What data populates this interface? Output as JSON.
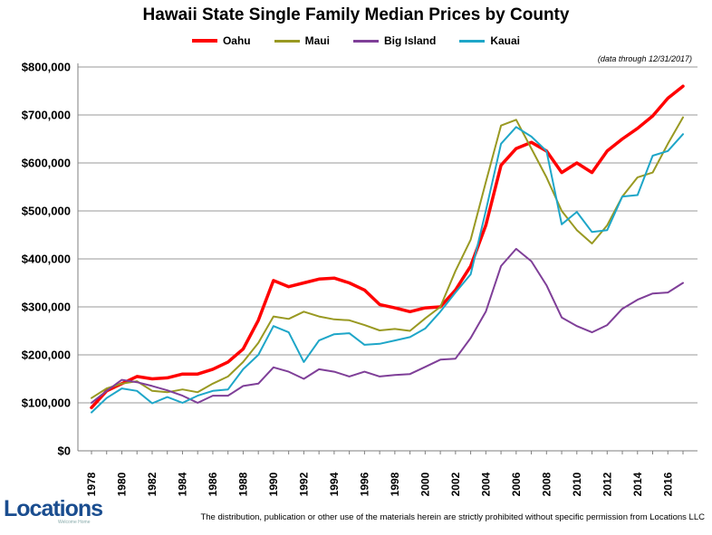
{
  "title": "Hawaii State Single Family Median Prices by County",
  "note": "(data through 12/31/2017)",
  "footer": "The distribution, publication or other use of the materials herein are strictly prohibited without specific permission from Locations LLC",
  "logo": {
    "text": "Locations",
    "tagline": "Welcome Home"
  },
  "chart_data": {
    "type": "line",
    "title": "Hawaii State Single Family Median Prices by County",
    "xlabel": "",
    "ylabel": "",
    "x": [
      1978,
      1979,
      1980,
      1981,
      1982,
      1983,
      1984,
      1985,
      1986,
      1987,
      1988,
      1989,
      1990,
      1991,
      1992,
      1993,
      1994,
      1995,
      1996,
      1997,
      1998,
      1999,
      2000,
      2001,
      2002,
      2003,
      2004,
      2005,
      2006,
      2007,
      2008,
      2009,
      2010,
      2011,
      2012,
      2013,
      2014,
      2015,
      2016,
      2017
    ],
    "xlim": [
      1978,
      2017
    ],
    "x_tick_labels": [
      "1978",
      "1980",
      "1982",
      "1984",
      "1986",
      "1988",
      "1990",
      "1992",
      "1994",
      "1996",
      "1998",
      "2000",
      "2002",
      "2004",
      "2006",
      "2008",
      "2010",
      "2012",
      "2014",
      "2016"
    ],
    "ylim": [
      0,
      800000
    ],
    "y_ticks": [
      0,
      100000,
      200000,
      300000,
      400000,
      500000,
      600000,
      700000,
      800000
    ],
    "y_tick_labels": [
      "$0",
      "$100,000",
      "$200,000",
      "$300,000",
      "$400,000",
      "$500,000",
      "$600,000",
      "$700,000",
      "$800,000"
    ],
    "grid": "horizontal",
    "legend_position": "top",
    "series": [
      {
        "name": "Oahu",
        "color": "#ff0000",
        "width": 3.5,
        "values": [
          90000,
          125000,
          140000,
          155000,
          150000,
          152000,
          160000,
          160000,
          170000,
          185000,
          212000,
          272000,
          355000,
          342000,
          350000,
          358000,
          360000,
          350000,
          335000,
          305000,
          298000,
          290000,
          298000,
          300000,
          335000,
          385000,
          470000,
          595000,
          630000,
          643000,
          625000,
          580000,
          600000,
          580000,
          625000,
          650000,
          672000,
          698000,
          735000,
          760000
        ]
      },
      {
        "name": "Maui",
        "color": "#999922",
        "width": 2,
        "values": [
          110000,
          130000,
          140000,
          145000,
          125000,
          122000,
          128000,
          122000,
          140000,
          155000,
          185000,
          225000,
          280000,
          275000,
          290000,
          280000,
          274000,
          272000,
          262000,
          251000,
          254000,
          250000,
          276000,
          300000,
          375000,
          440000,
          560000,
          678000,
          690000,
          630000,
          570000,
          500000,
          460000,
          432000,
          470000,
          530000,
          570000,
          580000,
          640000,
          695000
        ]
      },
      {
        "name": "Big Island",
        "color": "#7f3f98",
        "width": 2,
        "values": [
          100000,
          125000,
          148000,
          143000,
          135000,
          126000,
          115000,
          100000,
          115000,
          115000,
          135000,
          140000,
          174000,
          165000,
          150000,
          170000,
          165000,
          155000,
          165000,
          155000,
          158000,
          160000,
          175000,
          190000,
          192000,
          235000,
          290000,
          385000,
          421000,
          395000,
          345000,
          278000,
          260000,
          247000,
          262000,
          296000,
          315000,
          328000,
          330000,
          350000
        ]
      },
      {
        "name": "Kauai",
        "color": "#1ea6c8",
        "width": 2,
        "values": [
          80000,
          110000,
          130000,
          125000,
          99000,
          112000,
          100000,
          115000,
          125000,
          128000,
          170000,
          200000,
          260000,
          247000,
          185000,
          230000,
          243000,
          245000,
          221000,
          223000,
          230000,
          237000,
          255000,
          290000,
          330000,
          368000,
          500000,
          640000,
          675000,
          655000,
          625000,
          472000,
          498000,
          456000,
          460000,
          530000,
          533000,
          615000,
          625000,
          660000
        ]
      }
    ]
  }
}
